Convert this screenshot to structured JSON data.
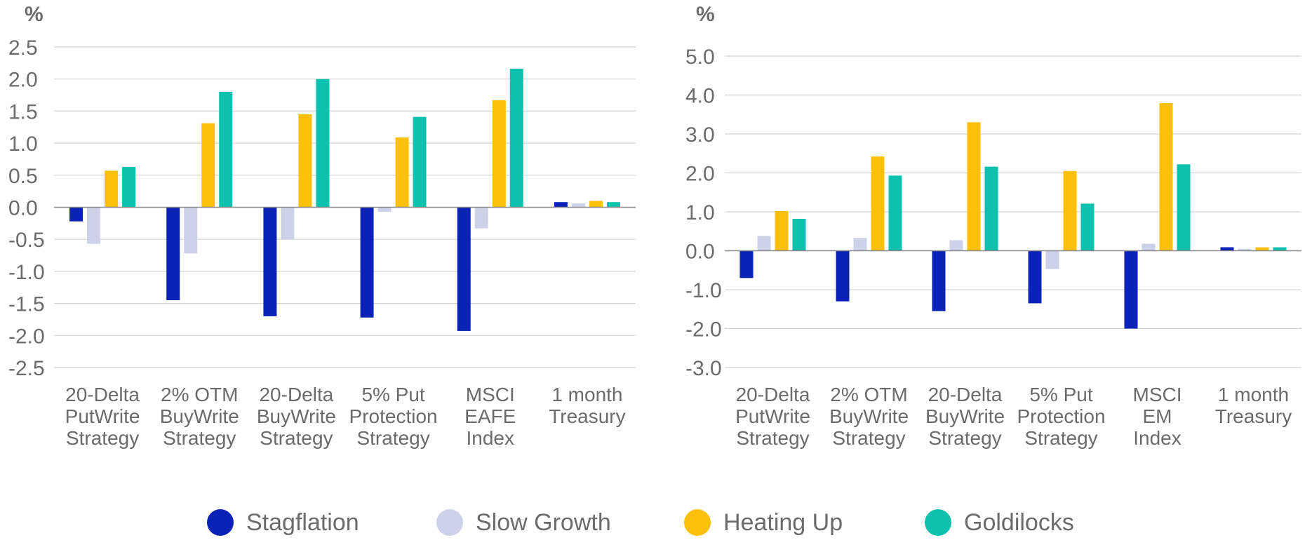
{
  "chart_data": [
    {
      "type": "bar",
      "ylabel": "%",
      "ylim": [
        -2.5,
        2.5
      ],
      "yticks": [
        "2.5",
        "2.0",
        "1.5",
        "1.0",
        "0.5",
        "0.0",
        "-0.5",
        "-1.0",
        "-1.5",
        "-2.0",
        "-2.5"
      ],
      "yticks_values": [
        2.5,
        2.0,
        1.5,
        1.0,
        0.5,
        0.0,
        -0.5,
        -1.0,
        -1.5,
        -2.0,
        -2.5
      ],
      "grid": true,
      "categories": [
        [
          "20-Delta",
          "PutWrite",
          "Strategy"
        ],
        [
          "2% OTM",
          "BuyWrite",
          "Strategy"
        ],
        [
          "20-Delta",
          "BuyWrite",
          "Strategy"
        ],
        [
          "5% Put",
          "Protection",
          "Strategy"
        ],
        [
          "MSCI",
          "EAFE",
          "Index"
        ],
        [
          "1 month",
          "Treasury"
        ]
      ],
      "series": [
        {
          "name": "Stagflation",
          "values": [
            -0.22,
            -1.45,
            -1.7,
            -1.72,
            -1.93,
            0.08
          ]
        },
        {
          "name": "Slow Growth",
          "values": [
            -0.57,
            -0.72,
            -0.5,
            -0.07,
            -0.33,
            0.06
          ]
        },
        {
          "name": "Heating Up",
          "values": [
            0.57,
            1.31,
            1.45,
            1.09,
            1.67,
            0.1
          ]
        },
        {
          "name": "Goldilocks",
          "values": [
            0.63,
            1.8,
            2.0,
            1.41,
            2.16,
            0.08
          ]
        }
      ]
    },
    {
      "type": "bar",
      "ylabel": "%",
      "ylim": [
        -3.0,
        5.0
      ],
      "yticks": [
        "5.0",
        "4.0",
        "3.0",
        "2.0",
        "1.0",
        "0.0",
        "-1.0",
        "-2.0",
        "-3.0"
      ],
      "yticks_values": [
        5,
        4,
        3,
        2,
        1,
        0,
        -1,
        -2,
        -3
      ],
      "grid": true,
      "categories": [
        [
          "20-Delta",
          "PutWrite",
          "Strategy"
        ],
        [
          "2% OTM",
          "BuyWrite",
          "Strategy"
        ],
        [
          "20-Delta",
          "BuyWrite",
          "Strategy"
        ],
        [
          "5% Put",
          "Protection",
          "Strategy"
        ],
        [
          "MSCI",
          "EM",
          "Index"
        ],
        [
          "1 month",
          "Treasury"
        ]
      ],
      "series": [
        {
          "name": "Stagflation",
          "values": [
            -0.7,
            -1.3,
            -1.55,
            -1.35,
            -2.0,
            0.09
          ]
        },
        {
          "name": "Slow Growth",
          "values": [
            0.38,
            0.33,
            0.27,
            -0.47,
            0.18,
            0.05
          ]
        },
        {
          "name": "Heating Up",
          "values": [
            1.02,
            2.42,
            3.3,
            2.05,
            3.79,
            0.09
          ]
        },
        {
          "name": "Goldilocks",
          "values": [
            0.82,
            1.93,
            2.16,
            1.21,
            2.22,
            0.09
          ]
        }
      ]
    }
  ],
  "legend": {
    "position": "bottom",
    "items": [
      {
        "label": "Stagflation",
        "color": "#0a22b5"
      },
      {
        "label": "Slow Growth",
        "color": "#cdd2ea"
      },
      {
        "label": "Heating Up",
        "color": "#fcbf0a"
      },
      {
        "label": "Goldilocks",
        "color": "#0cc1ad"
      }
    ]
  },
  "colors": {
    "axis_text": "#6b6b6b",
    "gridline": "#d4d4d4",
    "zero_line": "#8a8a8a"
  }
}
